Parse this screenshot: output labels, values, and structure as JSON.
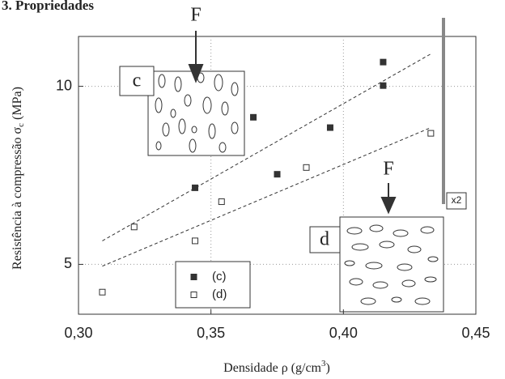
{
  "header": "3. Propriedades",
  "chart_data": {
    "type": "scatter",
    "y_label": {
      "text": "Resistência à compressão σ",
      "subscript": "c",
      "suffix": " (MPa)"
    },
    "x_label": {
      "text": "Densidade ρ (g/cm",
      "superscript": "3",
      "suffix": ")"
    },
    "xlim": [
      0.3,
      0.45
    ],
    "ylim": [
      3.6,
      11.4
    ],
    "xticks": [
      {
        "value": 0.3,
        "label": "0,30"
      },
      {
        "value": 0.35,
        "label": "0,35"
      },
      {
        "value": 0.4,
        "label": "0,40"
      },
      {
        "value": 0.45,
        "label": "0,45"
      }
    ],
    "yticks": [
      5,
      10
    ],
    "grid": true,
    "series": [
      {
        "name": "(c)",
        "marker": "filled",
        "color": "#333333",
        "x": [
          0.344,
          0.366,
          0.375,
          0.395,
          0.415,
          0.415
        ],
        "values": [
          7.15,
          9.13,
          7.53,
          8.84,
          10.02,
          10.68
        ]
      },
      {
        "name": "(d)",
        "marker": "open",
        "color": "#333333",
        "x": [
          0.309,
          0.321,
          0.344,
          0.354,
          0.386,
          0.433
        ],
        "values": [
          4.22,
          6.05,
          5.66,
          6.76,
          7.72,
          8.68
        ]
      }
    ],
    "trend_lines": [
      {
        "x": [
          0.309,
          0.433
        ],
        "values": [
          5.66,
          10.91
        ]
      },
      {
        "x": [
          0.309,
          0.433
        ],
        "values": [
          4.95,
          8.84
        ]
      }
    ],
    "annotations": {
      "inset_c": "c",
      "inset_d": "d",
      "arrow_c": "F",
      "arrow_d": "F",
      "scale": "x2"
    }
  }
}
